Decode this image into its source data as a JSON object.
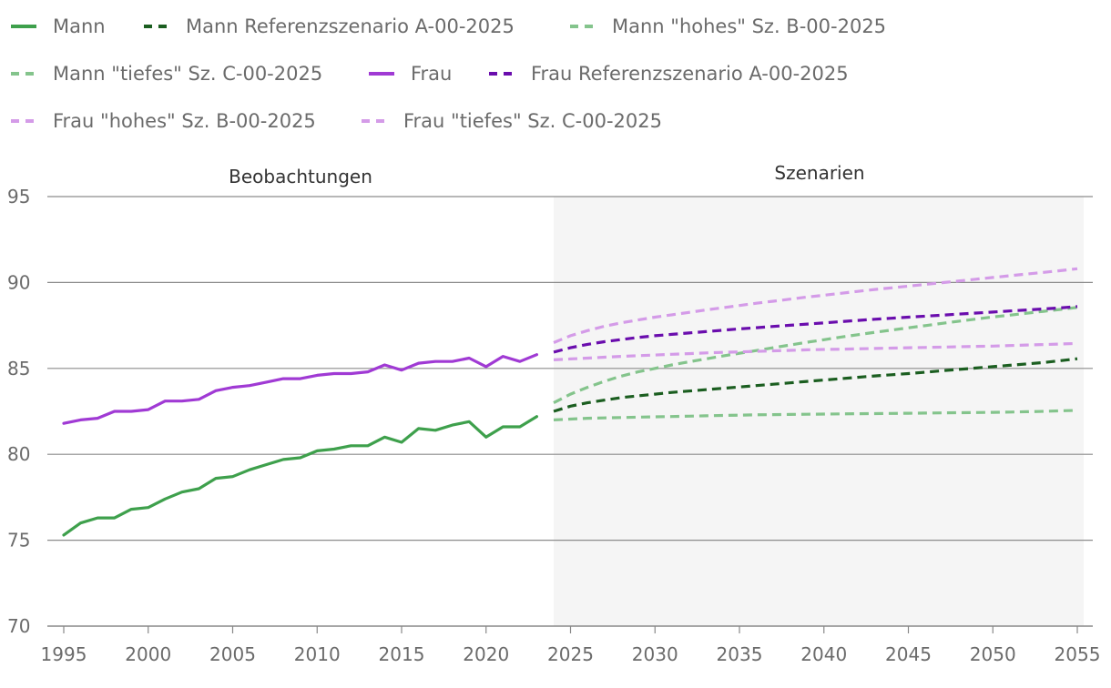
{
  "chart_data": {
    "type": "line",
    "title": "",
    "xlabel": "",
    "ylabel": "",
    "xlim": [
      1995,
      2055
    ],
    "ylim": [
      70,
      95
    ],
    "y_ticks": [
      70,
      75,
      80,
      85,
      90,
      95
    ],
    "x_ticks": [
      1995,
      2000,
      2005,
      2010,
      2015,
      2020,
      2025,
      2030,
      2035,
      2040,
      2045,
      2050,
      2055
    ],
    "regions": [
      {
        "label": "Beobachtungen",
        "from": 1995,
        "to": 2023.5,
        "shaded": false
      },
      {
        "label": "Szenarien",
        "from": 2023.5,
        "to": 2055.5,
        "shaded": true,
        "color": "#f5f5f5"
      }
    ],
    "x_obs": [
      1995,
      1996,
      1997,
      1998,
      1999,
      2000,
      2001,
      2002,
      2003,
      2004,
      2005,
      2006,
      2007,
      2008,
      2009,
      2010,
      2011,
      2012,
      2013,
      2014,
      2015,
      2016,
      2017,
      2018,
      2019,
      2020,
      2021,
      2022,
      2023
    ],
    "x_proj": [
      2024,
      2025,
      2026,
      2027,
      2028,
      2029,
      2030,
      2031,
      2032,
      2033,
      2034,
      2035,
      2036,
      2037,
      2038,
      2039,
      2040,
      2041,
      2042,
      2043,
      2044,
      2045,
      2046,
      2047,
      2048,
      2049,
      2050,
      2051,
      2052,
      2053,
      2054,
      2055
    ],
    "series": [
      {
        "name": "Mann",
        "color": "#3ea04c",
        "style": "solid",
        "period": "obs",
        "values": [
          75.3,
          76.0,
          76.3,
          76.3,
          76.8,
          76.9,
          77.4,
          77.8,
          78.0,
          78.6,
          78.7,
          79.1,
          79.4,
          79.7,
          79.8,
          80.2,
          80.3,
          80.5,
          80.5,
          81.0,
          80.7,
          81.5,
          81.4,
          81.7,
          81.9,
          81.0,
          81.6,
          81.6,
          82.2
        ]
      },
      {
        "name": "Mann Referenzszenario A-00-2025",
        "color": "#1b5e20",
        "style": "dashed",
        "period": "proj",
        "values": [
          82.5,
          82.8,
          83.0,
          83.15,
          83.3,
          83.4,
          83.5,
          83.6,
          83.68,
          83.76,
          83.84,
          83.92,
          84.0,
          84.08,
          84.16,
          84.24,
          84.32,
          84.4,
          84.48,
          84.56,
          84.63,
          84.7,
          84.78,
          84.86,
          84.94,
          85.02,
          85.1,
          85.18,
          85.26,
          85.34,
          85.45,
          85.56
        ]
      },
      {
        "name": "Mann \"hohes\" Sz. B-00-2025",
        "color": "#84c48c",
        "style": "dashed",
        "period": "proj",
        "values": [
          83.0,
          83.5,
          83.9,
          84.25,
          84.55,
          84.8,
          85.0,
          85.2,
          85.38,
          85.55,
          85.72,
          85.88,
          86.04,
          86.2,
          86.36,
          86.52,
          86.67,
          86.82,
          86.96,
          87.1,
          87.23,
          87.36,
          87.49,
          87.62,
          87.75,
          87.87,
          87.99,
          88.1,
          88.21,
          88.32,
          88.43,
          88.55
        ]
      },
      {
        "name": "Mann \"tiefes\" Sz. C-00-2025",
        "color": "#84c48c",
        "style": "dashed",
        "period": "proj",
        "values": [
          82.0,
          82.05,
          82.1,
          82.12,
          82.14,
          82.16,
          82.18,
          82.2,
          82.22,
          82.24,
          82.26,
          82.28,
          82.3,
          82.31,
          82.32,
          82.33,
          82.34,
          82.35,
          82.36,
          82.37,
          82.38,
          82.39,
          82.4,
          82.41,
          82.42,
          82.43,
          82.44,
          82.46,
          82.48,
          82.5,
          82.53,
          82.56
        ]
      },
      {
        "name": "Frau",
        "color": "#a03ad4",
        "style": "solid",
        "period": "obs",
        "values": [
          81.8,
          82.0,
          82.1,
          82.5,
          82.5,
          82.6,
          83.1,
          83.1,
          83.2,
          83.7,
          83.9,
          84.0,
          84.2,
          84.4,
          84.4,
          84.6,
          84.7,
          84.7,
          84.8,
          85.2,
          84.9,
          85.3,
          85.4,
          85.4,
          85.6,
          85.1,
          85.7,
          85.4,
          85.8
        ]
      },
      {
        "name": "Frau Referenzszenario A-00-2025",
        "color": "#6a0dad",
        "style": "dashed",
        "period": "proj",
        "values": [
          85.95,
          86.2,
          86.4,
          86.55,
          86.68,
          86.8,
          86.9,
          86.98,
          87.06,
          87.14,
          87.22,
          87.3,
          87.37,
          87.44,
          87.51,
          87.58,
          87.65,
          87.72,
          87.79,
          87.86,
          87.92,
          87.98,
          88.04,
          88.1,
          88.16,
          88.22,
          88.28,
          88.34,
          88.4,
          88.46,
          88.52,
          88.6
        ]
      },
      {
        "name": "Frau \"hohes\" Sz. B-00-2025",
        "color": "#d49be8",
        "style": "dashed",
        "period": "proj",
        "values": [
          86.5,
          86.9,
          87.2,
          87.45,
          87.65,
          87.82,
          87.98,
          88.12,
          88.26,
          88.4,
          88.53,
          88.66,
          88.79,
          88.91,
          89.03,
          89.15,
          89.26,
          89.37,
          89.48,
          89.59,
          89.69,
          89.79,
          89.89,
          89.99,
          90.09,
          90.19,
          90.29,
          90.39,
          90.49,
          90.59,
          90.69,
          90.8
        ]
      },
      {
        "name": "Frau \"tiefes\" Sz. C-00-2025",
        "color": "#d49be8",
        "style": "dashed",
        "period": "proj",
        "values": [
          85.5,
          85.55,
          85.6,
          85.65,
          85.7,
          85.74,
          85.78,
          85.82,
          85.86,
          85.9,
          85.93,
          85.96,
          85.99,
          86.02,
          86.05,
          86.08,
          86.1,
          86.12,
          86.14,
          86.16,
          86.18,
          86.2,
          86.22,
          86.24,
          86.26,
          86.28,
          86.3,
          86.33,
          86.36,
          86.39,
          86.42,
          86.45
        ]
      }
    ]
  }
}
